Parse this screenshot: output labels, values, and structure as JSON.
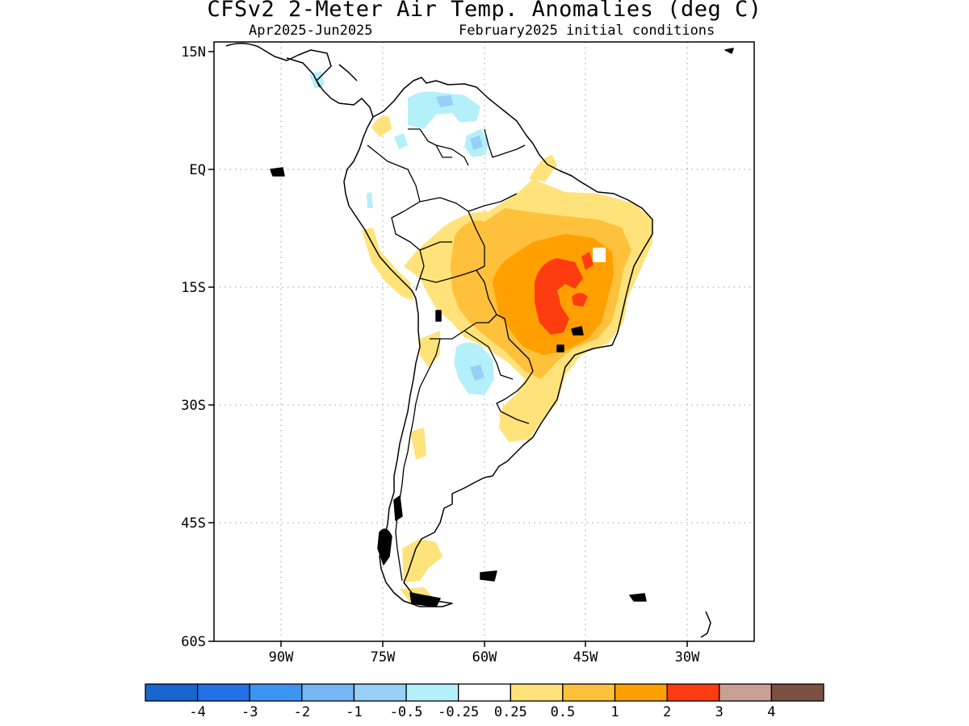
{
  "title": "CFSv2 2-Meter Air Temp. Anomalies (deg C)",
  "subtitle_left": "Apr2025-Jun2025",
  "subtitle_right": "February2025 initial conditions",
  "lat_labels": [
    "15N",
    "EQ",
    "15S",
    "30S",
    "45S",
    "60S"
  ],
  "lon_labels": [
    "90W",
    "75W",
    "60W",
    "45W",
    "30W"
  ],
  "colorbar": {
    "colors": [
      "#1965d0",
      "#2470e6",
      "#3c95f2",
      "#76b6f4",
      "#96d0f7",
      "#b4f0fa",
      "#ffffff",
      "#ffe37a",
      "#ffc03c",
      "#ffa000",
      "#ff3c0f",
      "#c8a096",
      "#7a5040"
    ],
    "labels": [
      "-4",
      "-3",
      "-2",
      "-1",
      "-0.5",
      "-0.25",
      "0.25",
      "0.5",
      "1",
      "2",
      "3",
      "4"
    ]
  },
  "map_data": {
    "region": "South America",
    "lon_range": [
      "95W",
      "15W"
    ],
    "lat_range": [
      "60S",
      "15N"
    ],
    "variable": "2-meter air temperature anomaly",
    "units": "deg C",
    "max_anomaly_region": "central-eastern Brazil, 2 to 3 deg C",
    "negative_regions": [
      "northern Venezuela / Guyana",
      "Paraguay / northern Argentina"
    ]
  }
}
